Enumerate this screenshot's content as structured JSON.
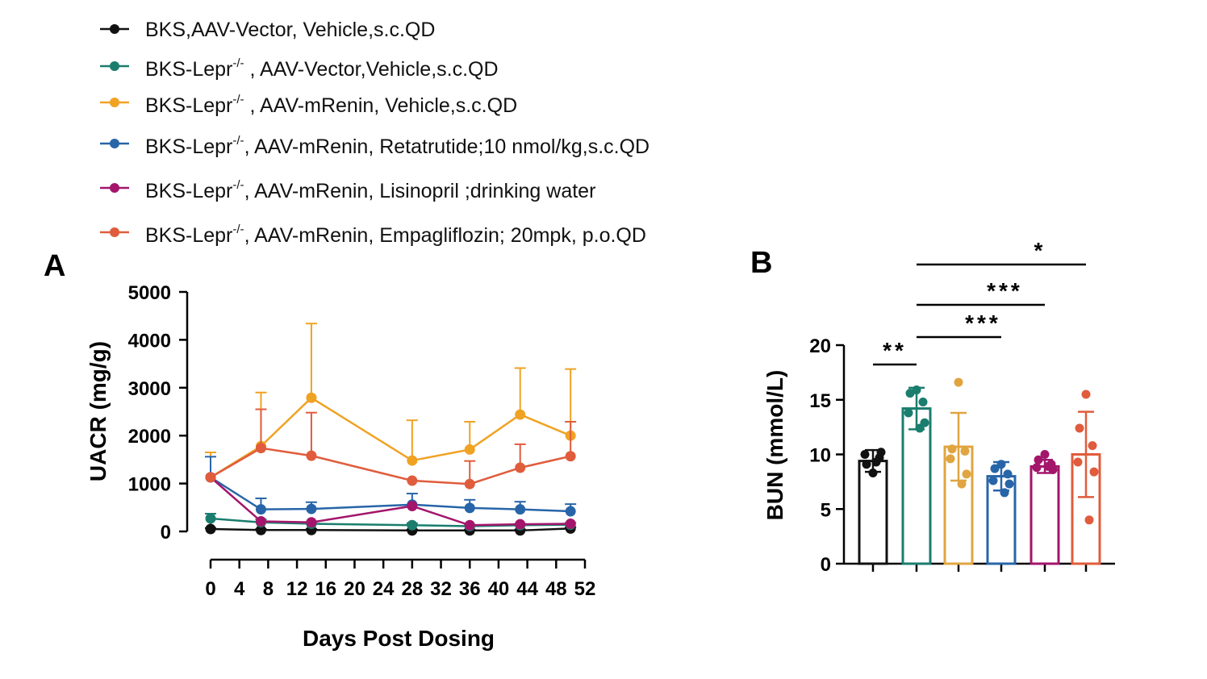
{
  "legend": [
    {
      "color": "#111111",
      "prefix": "BKS,AAV-Vector, Vehicle,s.c.QD",
      "sup": "",
      "suffix": ""
    },
    {
      "color": "#1a7d6e",
      "prefix": "BKS-Lepr",
      "sup": "-/-",
      "suffix": " , AAV-Vector,Vehicle,s.c.QD"
    },
    {
      "color": "#f0a223",
      "prefix": "BKS-Lepr",
      "sup": "-/-",
      "suffix": " , AAV-mRenin,  Vehicle,s.c.QD"
    },
    {
      "color": "#2765a8",
      "prefix": "BKS-Lepr",
      "sup": "-/-",
      "suffix": ", AAV-mRenin, Retatrutide;10 nmol/kg,s.c.QD"
    },
    {
      "color": "#a3166b",
      "prefix": "BKS-Lepr",
      "sup": "-/-",
      "suffix": ", AAV-mRenin,  Lisinopril ;drinking water"
    },
    {
      "color": "#e05c3c",
      "prefix": "BKS-Lepr",
      "sup": "-/-",
      "suffix": ", AAV-mRenin,  Empagliflozin; 20mpk, p.o.QD"
    }
  ],
  "chart_data": [
    {
      "panel": "A",
      "type": "line",
      "xlabel": "Days Post  Dosing",
      "ylabel": "UACR (mg/g)",
      "xlim": [
        0,
        52
      ],
      "ylim": [
        0,
        5000
      ],
      "xticks": [
        0,
        4,
        8,
        12,
        16,
        20,
        24,
        28,
        32,
        36,
        40,
        44,
        48,
        52
      ],
      "yticks": [
        0,
        1000,
        2000,
        3000,
        4000,
        5000
      ],
      "x": [
        0,
        7,
        14,
        28,
        36,
        43,
        50
      ],
      "series": [
        {
          "color": "#111111",
          "values": [
            50,
            30,
            30,
            20,
            20,
            20,
            60
          ],
          "err": [
            20,
            20,
            20,
            20,
            20,
            20,
            30
          ]
        },
        {
          "color": "#1a7d6e",
          "values": [
            270,
            190,
            160,
            130,
            110,
            130,
            140
          ],
          "err": [
            100,
            60,
            40,
            40,
            30,
            30,
            40
          ]
        },
        {
          "color": "#f0a223",
          "values": [
            1130,
            1780,
            2790,
            1480,
            1710,
            2440,
            2000
          ],
          "err": [
            520,
            1120,
            1550,
            840,
            580,
            970,
            1390
          ]
        },
        {
          "color": "#2765a8",
          "values": [
            1130,
            460,
            470,
            560,
            490,
            460,
            420
          ],
          "err": [
            430,
            230,
            140,
            230,
            170,
            160,
            150
          ]
        },
        {
          "color": "#a3166b",
          "values": [
            1130,
            210,
            190,
            530,
            130,
            150,
            160
          ],
          "err": [
            0,
            0,
            0,
            0,
            0,
            0,
            0
          ]
        },
        {
          "color": "#e05c3c",
          "values": [
            1130,
            1740,
            1580,
            1060,
            990,
            1330,
            1570
          ],
          "err": [
            0,
            810,
            900,
            0,
            480,
            490,
            720
          ]
        }
      ]
    },
    {
      "panel": "B",
      "type": "bar",
      "ylabel": "BUN (mmol/L)",
      "ylim": [
        0,
        20
      ],
      "yticks": [
        0,
        5,
        10,
        15,
        20
      ],
      "bars": [
        {
          "color": "#111111",
          "mean": 9.4,
          "sd": 1.0,
          "points": [
            8.3,
            9.1,
            9.7,
            10.0,
            10.2,
            9.3
          ]
        },
        {
          "color": "#1a7d6e",
          "mean": 14.2,
          "sd": 1.9,
          "points": [
            15.9,
            15.6,
            14.8,
            13.8,
            12.9,
            12.4
          ]
        },
        {
          "color": "#e0a540",
          "mean": 10.7,
          "sd": 3.1,
          "points": [
            16.6,
            10.5,
            10.3,
            9.6,
            8.2,
            7.3
          ]
        },
        {
          "color": "#2765a8",
          "mean": 8.0,
          "sd": 1.3,
          "points": [
            9.1,
            8.7,
            8.2,
            7.6,
            7.3,
            6.5
          ]
        },
        {
          "color": "#a3166b",
          "mean": 8.9,
          "sd": 0.6,
          "points": [
            10.0,
            9.5,
            9.1,
            8.8,
            8.6,
            8.9
          ]
        },
        {
          "color": "#e05c3c",
          "mean": 10.0,
          "sd": 3.9,
          "points": [
            15.5,
            12.4,
            10.8,
            9.3,
            8.4,
            4.0
          ]
        }
      ],
      "significance": [
        {
          "from": 0,
          "to": 1,
          "label": "**"
        },
        {
          "from": 1,
          "to": 3,
          "label": "***"
        },
        {
          "from": 1,
          "to": 4,
          "label": "***"
        },
        {
          "from": 1,
          "to": 5,
          "label": "*"
        }
      ]
    }
  ]
}
